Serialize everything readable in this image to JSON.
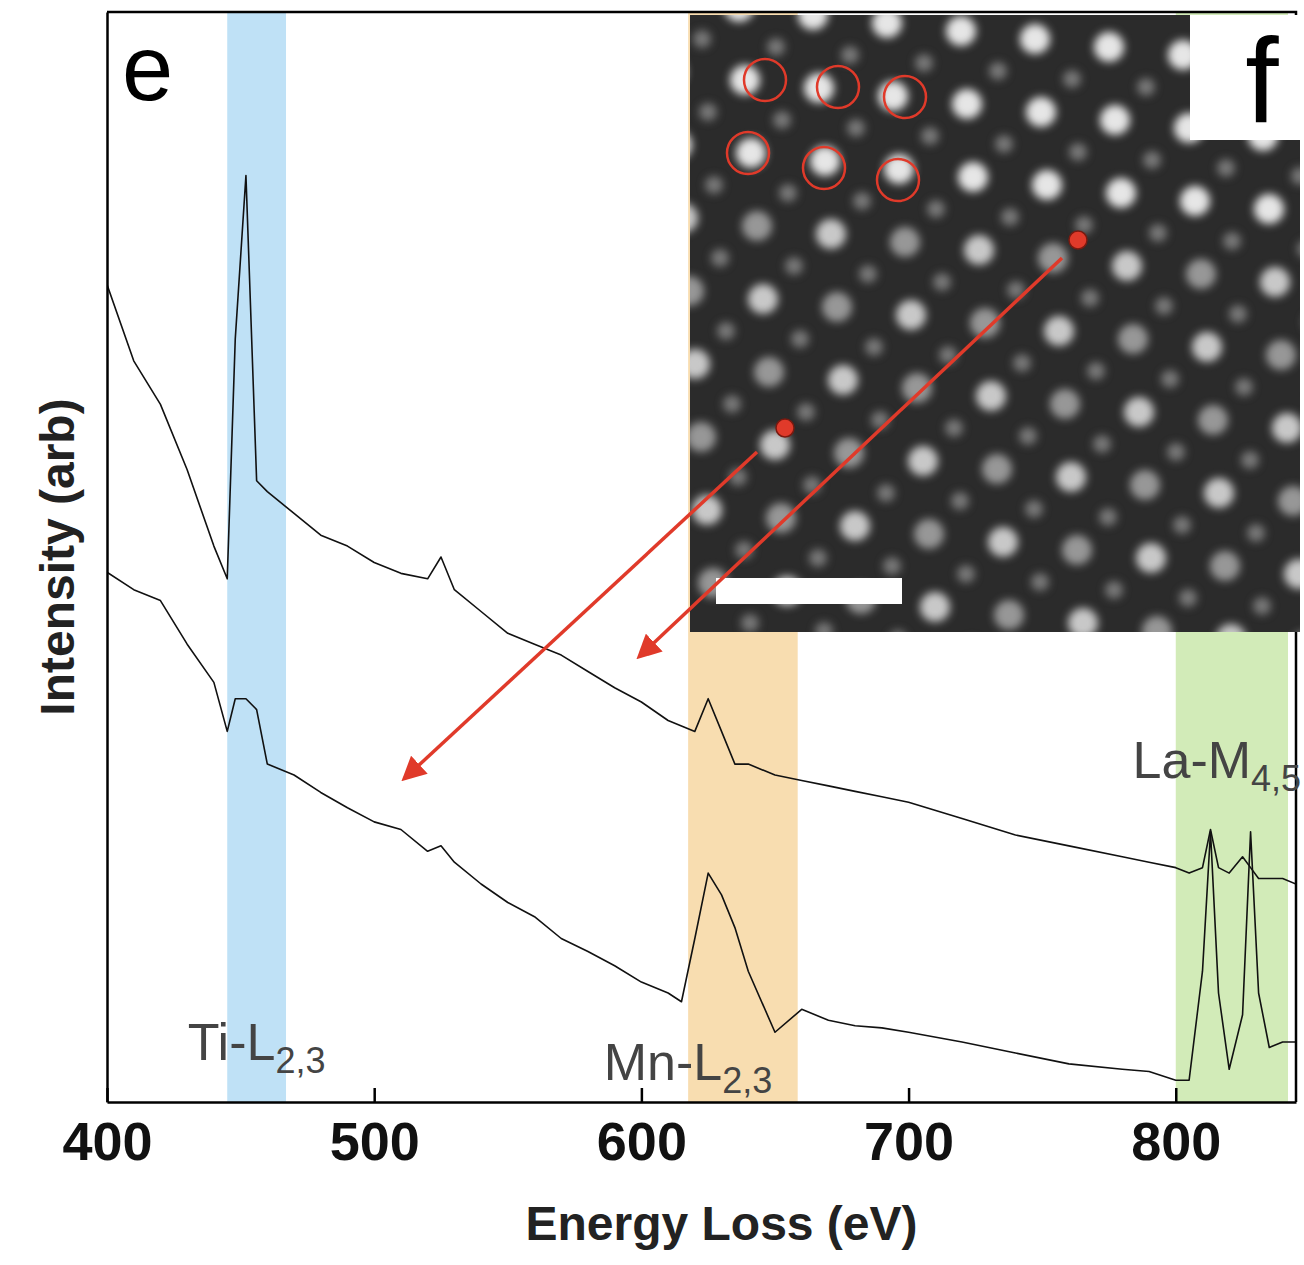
{
  "chart_data": {
    "type": "line",
    "panel_labels": [
      "e",
      "f"
    ],
    "xlabel": "Energy Loss (eV)",
    "ylabel": "Intensity (arb)",
    "xlim": [
      400,
      845
    ],
    "xticks": [
      400,
      500,
      600,
      700,
      800
    ],
    "ylim": [
      0,
      100
    ],
    "yticks": [],
    "tick_labels": "x",
    "x": [
      400,
      410,
      420,
      430,
      440,
      445,
      448,
      452,
      456,
      460,
      470,
      480,
      490,
      500,
      510,
      520,
      525,
      530,
      540,
      550,
      560,
      570,
      580,
      590,
      600,
      610,
      615,
      620,
      625,
      630,
      635,
      640,
      650,
      660,
      670,
      680,
      690,
      700,
      720,
      740,
      760,
      780,
      790,
      800,
      805,
      810,
      813,
      816,
      820,
      825,
      828,
      831,
      835,
      840,
      845
    ],
    "series": [
      {
        "color": "#111111",
        "values": [
          75,
          68,
          64,
          58,
          51,
          48,
          70,
          85,
          57,
          56,
          54,
          52,
          51,
          49.5,
          48.5,
          48,
          50,
          47,
          45,
          43,
          42,
          41,
          39.5,
          38,
          36.7,
          35,
          34.5,
          34,
          37,
          34,
          31,
          31,
          30,
          29.5,
          29,
          28.5,
          28,
          27.5,
          26,
          24.5,
          23.5,
          22.5,
          22,
          21.5,
          21,
          21.5,
          25,
          21.5,
          21,
          22.5,
          21.5,
          20.5,
          20.5,
          20.5,
          20
        ]
      },
      {
        "color": "#111111",
        "values": [
          48.6,
          47,
          46,
          42,
          38.5,
          34,
          37,
          37,
          36,
          31,
          30,
          28.4,
          27,
          25.7,
          25,
          23,
          23.5,
          22,
          20,
          18.3,
          17,
          15,
          13.8,
          12.5,
          11,
          10,
          9.2,
          15,
          21,
          19,
          16,
          12,
          6.4,
          8.5,
          7.5,
          7,
          6.8,
          6.4,
          5.5,
          4.5,
          3.5,
          3,
          2.8,
          2,
          2,
          12,
          24.8,
          10,
          3,
          8,
          24.8,
          10,
          5,
          5.5,
          5.5
        ]
      }
    ],
    "bands": [
      {
        "label": "Ti-L",
        "subscript": "2,3",
        "x0": 445,
        "x1": 467,
        "color": "#bfe1f6"
      },
      {
        "label": "Mn-L",
        "subscript": "2,3",
        "x0": 617.5,
        "x1": 658.5,
        "color": "#f8ddb0"
      },
      {
        "label": "La-M",
        "subscript": "4,5",
        "x0": 800,
        "x1": 842,
        "color": "#d2ebb8"
      }
    ]
  }
}
